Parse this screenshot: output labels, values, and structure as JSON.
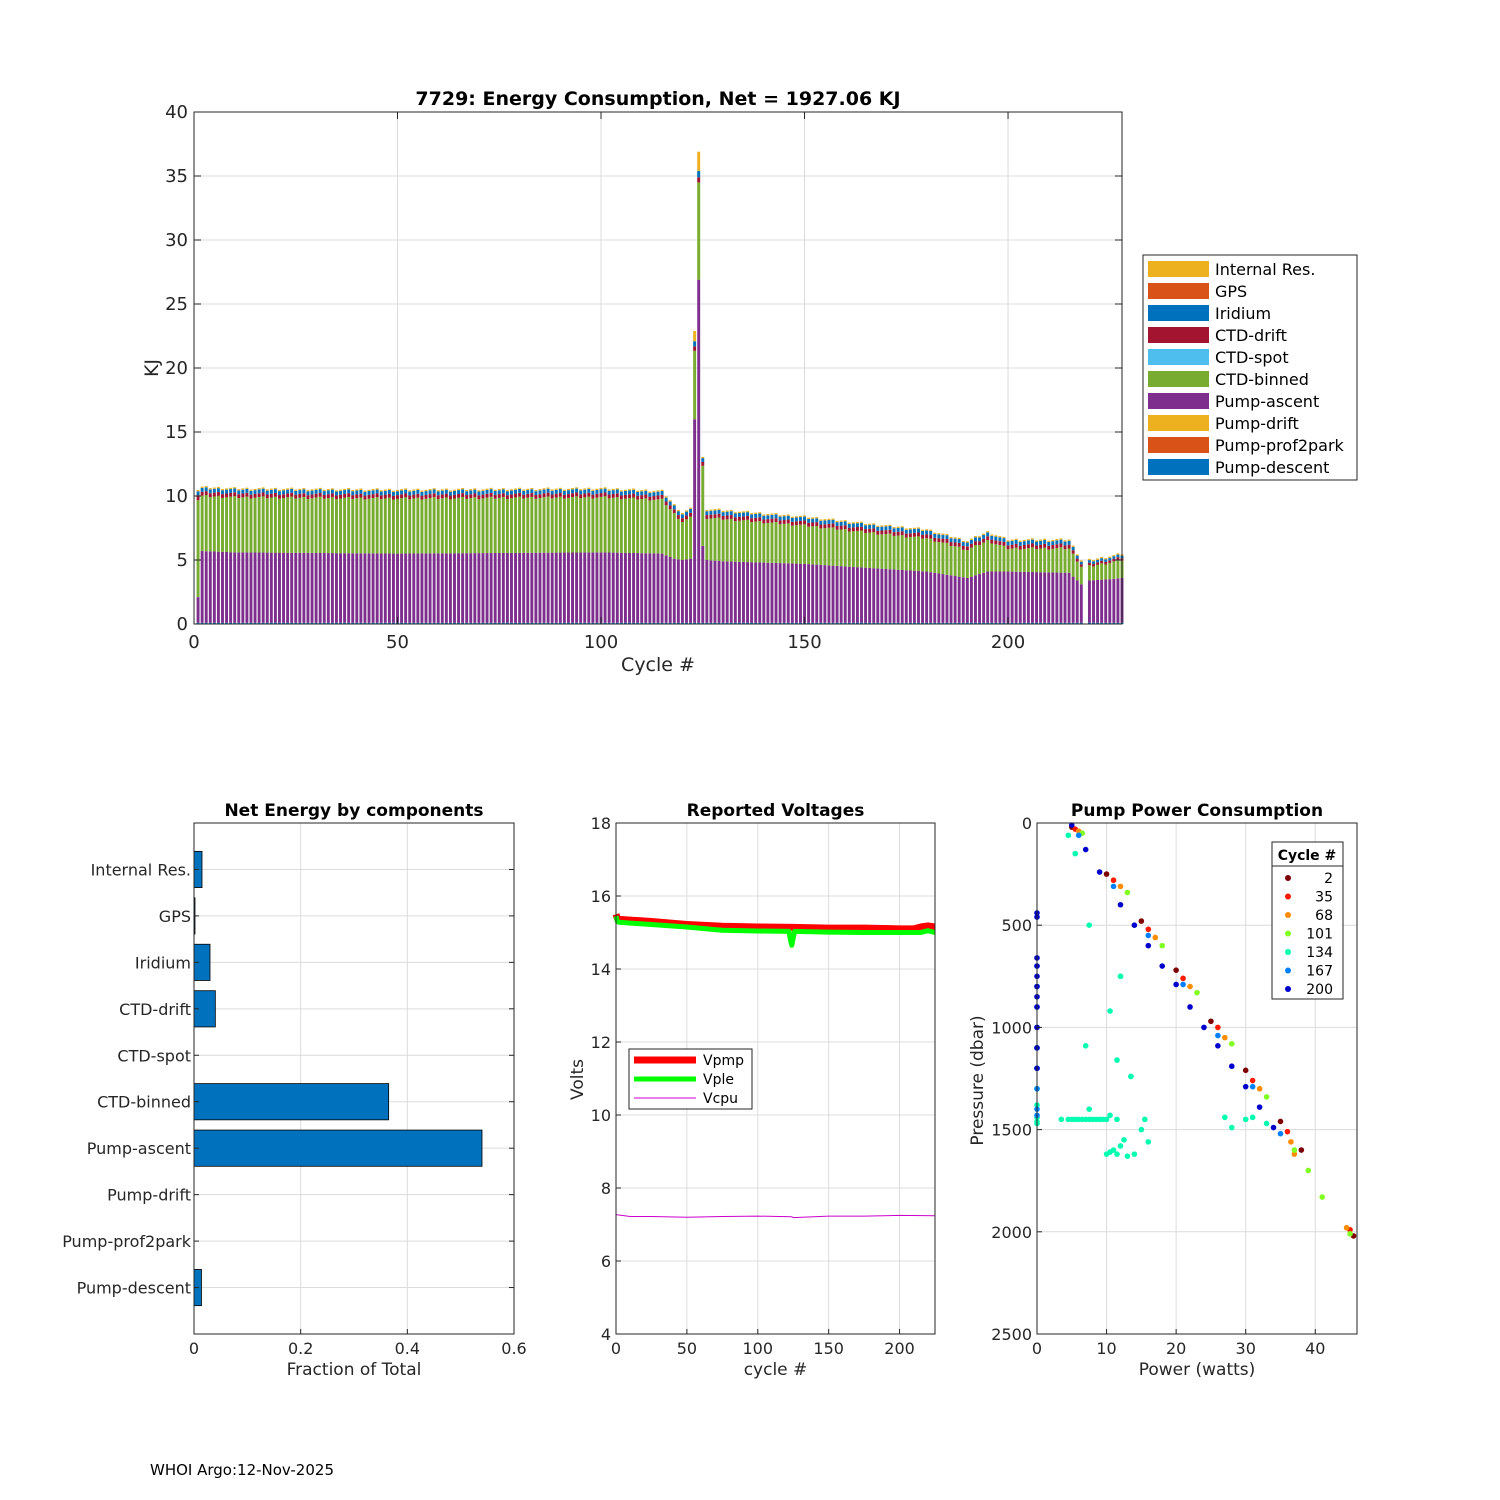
{
  "footer": "WHOI Argo:12-Nov-2025",
  "chart_data": [
    {
      "id": "energy",
      "type": "bar",
      "stacked": true,
      "title": "7729: Energy Consumption,  Net = 1927.06 KJ",
      "xlabel": "Cycle #",
      "ylabel": "KJ",
      "xlim": [
        0,
        228
      ],
      "ylim": [
        0,
        40
      ],
      "xticks": [
        0,
        50,
        100,
        150,
        200
      ],
      "yticks": [
        0,
        5,
        10,
        15,
        20,
        25,
        30,
        35,
        40
      ],
      "legend_position": "outside-right",
      "legend": [
        {
          "name": "Internal Res.",
          "color": "#EDB120"
        },
        {
          "name": "GPS",
          "color": "#D95319"
        },
        {
          "name": "Iridium",
          "color": "#0072BD"
        },
        {
          "name": "CTD-drift",
          "color": "#A2142F"
        },
        {
          "name": "CTD-spot",
          "color": "#4DBEEE"
        },
        {
          "name": "CTD-binned",
          "color": "#77AC30"
        },
        {
          "name": "Pump-ascent",
          "color": "#7E2F8E"
        },
        {
          "name": "Pump-drift",
          "color": "#EDB120"
        },
        {
          "name": "Pump-prof2park",
          "color": "#D95319"
        },
        {
          "name": "Pump-descent",
          "color": "#0072BD"
        }
      ],
      "series_trend": {
        "x": [
          1,
          2,
          10,
          50,
          100,
          115,
          118,
          120,
          122,
          124,
          125,
          126,
          130,
          150,
          170,
          180,
          190,
          195,
          200,
          215,
          218,
          220,
          225,
          228
        ],
        "pump_ascent": [
          2.0,
          5.6,
          5.5,
          5.4,
          5.5,
          5.4,
          5.0,
          4.9,
          5.0,
          26.8,
          6.0,
          4.9,
          4.8,
          4.6,
          4.2,
          4.0,
          3.5,
          4.0,
          4.0,
          3.9,
          3.0,
          3.3,
          3.4,
          3.5
        ],
        "ctd_binned": [
          7.6,
          4.3,
          4.3,
          4.3,
          4.3,
          4.2,
          3.5,
          3.0,
          3.2,
          7.6,
          6.2,
          3.3,
          3.3,
          3.0,
          2.7,
          2.6,
          2.2,
          2.4,
          1.8,
          1.9,
          1.4,
          1.1,
          1.3,
          1.4
        ],
        "ctd_drift": [
          0.4,
          0.3,
          0.3,
          0.3,
          0.3,
          0.3,
          0.3,
          0.3,
          0.3,
          0.4,
          0.3,
          0.3,
          0.3,
          0.3,
          0.3,
          0.3,
          0.3,
          0.3,
          0.3,
          0.3,
          0.2,
          0.2,
          0.2,
          0.2
        ],
        "iridium": [
          0.3,
          0.3,
          0.3,
          0.3,
          0.3,
          0.3,
          0.3,
          0.3,
          0.3,
          0.5,
          0.3,
          0.3,
          0.3,
          0.3,
          0.3,
          0.3,
          0.3,
          0.3,
          0.3,
          0.3,
          0.2,
          0.2,
          0.2,
          0.2
        ],
        "internal_res": [
          0.1,
          0.1,
          0.1,
          0.1,
          0.1,
          0.1,
          0.1,
          0.1,
          0.1,
          1.5,
          0.1,
          0.1,
          0.1,
          0.1,
          0.1,
          0.1,
          0.1,
          0.1,
          0.1,
          0.1,
          0.1,
          0.1,
          0.1,
          0.1
        ],
        "pump_descent": [
          0.1,
          0.1,
          0.1,
          0.1,
          0.1,
          0.1,
          0.1,
          0.1,
          0.1,
          0.1,
          0.1,
          0.1,
          0.1,
          0.1,
          0.1,
          0.1,
          0.1,
          0.1,
          0.1,
          0.1,
          0.1,
          0.1,
          0.1,
          0.1
        ]
      },
      "missing_cycles": [
        219
      ]
    },
    {
      "id": "components",
      "type": "bar",
      "orientation": "horizontal",
      "title": "Net Energy by components",
      "xlabel": "Fraction of Total",
      "xlim": [
        0,
        0.6
      ],
      "xticks": [
        0,
        0.2,
        0.4,
        0.6
      ],
      "xtick_labels": [
        "0",
        "0.2",
        "0.4",
        "0.6"
      ],
      "categories": [
        "Internal Res.",
        "GPS",
        "Iridium",
        "CTD-drift",
        "CTD-spot",
        "CTD-binned",
        "Pump-ascent",
        "Pump-drift",
        "Pump-prof2park",
        "Pump-descent"
      ],
      "values": [
        0.015,
        0.001,
        0.03,
        0.04,
        0.0,
        0.365,
        0.54,
        0.0,
        0.0,
        0.014
      ],
      "color": "#0072BD"
    },
    {
      "id": "voltages",
      "type": "line",
      "title": "Reported Voltages",
      "xlabel": "cycle #",
      "ylabel": "Volts",
      "xlim": [
        0,
        225
      ],
      "ylim": [
        4,
        18
      ],
      "xticks": [
        0,
        50,
        100,
        150,
        200
      ],
      "yticks": [
        4,
        6,
        8,
        10,
        12,
        14,
        16,
        18
      ],
      "legend_position": "middle-left",
      "series": [
        {
          "name": "Vpmp",
          "color": "#FF0000",
          "x": [
            0,
            1,
            2,
            25,
            50,
            75,
            100,
            125,
            150,
            175,
            200,
            210,
            215,
            220,
            225
          ],
          "values": [
            15.5,
            15.38,
            15.36,
            15.3,
            15.22,
            15.17,
            15.15,
            15.14,
            15.12,
            15.12,
            15.1,
            15.1,
            15.15,
            15.18,
            15.15
          ]
        },
        {
          "name": "Vple",
          "color": "#00FF00",
          "x": [
            0,
            1,
            2,
            25,
            50,
            75,
            100,
            122,
            123,
            124,
            125,
            126,
            150,
            175,
            200,
            215,
            220,
            225
          ],
          "values": [
            15.45,
            15.3,
            15.28,
            15.22,
            15.15,
            15.06,
            15.04,
            15.03,
            14.8,
            14.65,
            14.85,
            15.03,
            15.01,
            15.0,
            15.0,
            15.0,
            15.05,
            15.0
          ]
        },
        {
          "name": "Vcpu",
          "color": "#CC00CC",
          "x": [
            0,
            10,
            25,
            50,
            75,
            100,
            124,
            125,
            150,
            175,
            200,
            225
          ],
          "values": [
            7.27,
            7.22,
            7.22,
            7.2,
            7.22,
            7.23,
            7.21,
            7.19,
            7.23,
            7.23,
            7.25,
            7.24
          ]
        }
      ]
    },
    {
      "id": "pump-power",
      "type": "scatter",
      "title": "Pump Power Consumption",
      "xlabel": "Power (watts)",
      "ylabel": "Pressure (dbar)",
      "xlim": [
        0,
        46
      ],
      "ylim": [
        0,
        2500
      ],
      "y_reversed": true,
      "xticks": [
        0,
        10,
        20,
        30,
        40
      ],
      "yticks": [
        0,
        500,
        1000,
        1500,
        2000,
        2500
      ],
      "legend_title": "Cycle #",
      "legend_position": "top-right",
      "series": [
        {
          "name": "2",
          "color": "#7F0000",
          "x": [
            5,
            10,
            15,
            20,
            25,
            30,
            35,
            38,
            45.5
          ],
          "values": [
            20,
            250,
            480,
            720,
            970,
            1210,
            1460,
            1600,
            2020
          ]
        },
        {
          "name": "35",
          "color": "#FF1A00",
          "x": [
            5.5,
            11,
            16,
            21,
            26,
            31,
            36,
            45
          ],
          "values": [
            30,
            280,
            520,
            760,
            1000,
            1260,
            1510,
            1990
          ]
        },
        {
          "name": "68",
          "color": "#FF8C00",
          "x": [
            6,
            12,
            17,
            22,
            27,
            32,
            36.5,
            37,
            44.5
          ],
          "values": [
            40,
            310,
            560,
            800,
            1050,
            1300,
            1560,
            1620,
            1980
          ]
        },
        {
          "name": "101",
          "color": "#80FF20",
          "x": [
            6.5,
            13,
            18,
            23,
            28,
            33,
            37,
            39,
            41,
            45
          ],
          "values": [
            50,
            340,
            600,
            830,
            1080,
            1340,
            1600,
            1700,
            1830,
            2010
          ]
        },
        {
          "name": "134",
          "color": "#00FFB0",
          "x": [
            0,
            0,
            0,
            0,
            0,
            0,
            0,
            3.5,
            4.5,
            5,
            5.5,
            6,
            6.5,
            7,
            7.5,
            8,
            8.5,
            9,
            9.5,
            10,
            10,
            10.5,
            11,
            11.5,
            12,
            12.5,
            13,
            14,
            15,
            16,
            10.5,
            11.5,
            12,
            7,
            7.5,
            10.5,
            11.5,
            13.5,
            15.5,
            27,
            28,
            30,
            31,
            33,
            4.5,
            5.5,
            7.5,
            12,
            13.5
          ],
          "values": [
            1100,
            1200,
            1300,
            1380,
            1440,
            1460,
            1470,
            1450,
            1450,
            1450,
            1450,
            1450,
            1450,
            1450,
            1450,
            1450,
            1450,
            1450,
            1450,
            1450,
            1620,
            1610,
            1600,
            1620,
            1580,
            1550,
            1630,
            1620,
            1500,
            1560,
            920,
            1160,
            750,
            1090,
            1400,
            1430,
            1450,
            1240,
            1450,
            1440,
            1490,
            1450,
            1440,
            1470,
            60,
            150,
            500,
            750,
            1240
          ]
        },
        {
          "name": "167",
          "color": "#0080FF",
          "x": [
            0,
            0,
            0,
            0,
            0,
            0,
            0,
            0,
            0,
            6,
            11,
            16,
            21,
            26,
            31,
            35
          ],
          "values": [
            700,
            800,
            900,
            1000,
            1100,
            1200,
            1300,
            1400,
            1430,
            60,
            310,
            550,
            790,
            1040,
            1290,
            1520
          ]
        },
        {
          "name": "200",
          "color": "#0000CC",
          "x": [
            0,
            0,
            0,
            0,
            0,
            0,
            0,
            0,
            0,
            0,
            0,
            5,
            7,
            9,
            12,
            14,
            16,
            18,
            20,
            22,
            24,
            26,
            28,
            30,
            32,
            34
          ],
          "values": [
            440,
            460,
            660,
            700,
            750,
            800,
            850,
            900,
            1000,
            1100,
            1200,
            10,
            130,
            240,
            400,
            500,
            600,
            700,
            790,
            900,
            1000,
            1090,
            1190,
            1290,
            1390,
            1490
          ]
        }
      ]
    }
  ]
}
